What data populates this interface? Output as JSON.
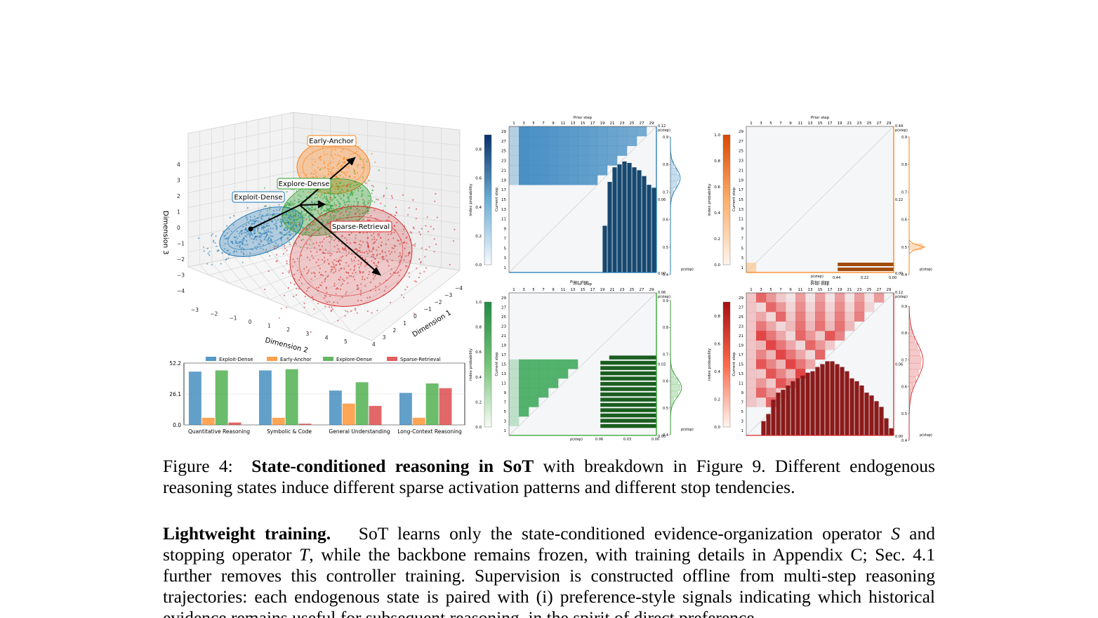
{
  "scatter3d": {
    "xlabel": "Dimension 2",
    "ylabel": "Dimension 1",
    "zlabel": "Dimension 3",
    "x_ticks": [
      "−3",
      "−2",
      "−1",
      "0",
      "1",
      "2",
      "3",
      "4",
      "5"
    ],
    "y_ticks": [
      "−4",
      "−3",
      "−2",
      "−1",
      "0",
      "1",
      "2",
      "3",
      "4"
    ],
    "z_ticks": [
      "4",
      "3",
      "2",
      "1",
      "0",
      "−1",
      "−2",
      "−3",
      "−4"
    ],
    "labels": [
      "Early-Anchor",
      "Explore-Dense",
      "Exploit-Dense",
      "Sparse-Retrieval"
    ],
    "colors": {
      "Exploit-Dense": "#1f77b4",
      "Early-Anchor": "#ff7f0e",
      "Explore-Dense": "#2ca02c",
      "Sparse-Retrieval": "#d62728"
    }
  },
  "chart_data": [
    {
      "type": "bar",
      "categories": [
        "Quantitative Reasoning",
        "Symbolic & Code",
        "General Understanding",
        "Long-Context Reasoning"
      ],
      "series": [
        {
          "name": "Exploit-Dense",
          "values": [
            45,
            46,
            29,
            27
          ]
        },
        {
          "name": "Early-Anchor",
          "values": [
            6,
            6,
            18,
            6
          ]
        },
        {
          "name": "Explore-Dense",
          "values": [
            46,
            47,
            36,
            35
          ]
        },
        {
          "name": "Sparse-Retrieval",
          "values": [
            2,
            1,
            16,
            31
          ]
        }
      ],
      "yticks": [
        "0.0",
        "26.1",
        "52.2"
      ],
      "ylim": [
        0,
        52.2
      ],
      "legend": "top"
    }
  ],
  "heatmaps": {
    "x_title": "Prior step",
    "y_title": "Current step",
    "cb_title": "index probability",
    "pstep": "p(step)",
    "pstop": "p(stop)",
    "ticks": [
      "1",
      "3",
      "5",
      "7",
      "9",
      "11",
      "13",
      "15",
      "17",
      "19",
      "21",
      "23",
      "25",
      "27",
      "29"
    ],
    "rows_ticks": [
      "29",
      "27",
      "25",
      "23",
      "21",
      "19",
      "17",
      "15",
      "13",
      "11",
      "9",
      "7",
      "5",
      "3",
      "1"
    ],
    "cb_ticks_a": [
      "0.8",
      "0.6",
      "0.4",
      "0.2",
      "0.0"
    ],
    "cb_ticks_b": [
      "1.0",
      "0.8",
      "0.6",
      "0.4",
      "0.2",
      "0.0"
    ],
    "stop_ticks": [
      "0.9",
      "0.8",
      "0.7",
      "0.6",
      "0.5",
      "0.4"
    ],
    "panel_a_vals": [
      "0.12",
      "0.06",
      "0.00"
    ],
    "panel_b_vals": [
      "0.44",
      "0.22",
      "0.00"
    ],
    "panel_c_vals": [
      "0.06",
      "0.03",
      "0.00"
    ],
    "panel_d_vals": [
      "0.12",
      "0.06",
      "0.00"
    ]
  },
  "caption": {
    "label": "Figure 4:",
    "bold": "State-conditioned reasoning in SoT",
    "rest": " with breakdown in Figure 9. Different endogenous reasoning states induce different sparse activation patterns and different stop tendencies."
  },
  "paragraph": {
    "title": "Lightweight training.",
    "s1": "SoT learns only the state-conditioned evidence-organization operator ",
    "m1": "S",
    "s2": " and stopping operator ",
    "m2": "T",
    "s3": ", while the backbone remains frozen, with training details in Appendix C; Sec. 4.1 further removes this controller training. Supervision is constructed offline from multi-step reasoning trajectories: each endogenous state is paired with (i) preference-style signals indicating which historical evidence remains useful for subsequent reasoning, in the spirit of direct preference"
  }
}
